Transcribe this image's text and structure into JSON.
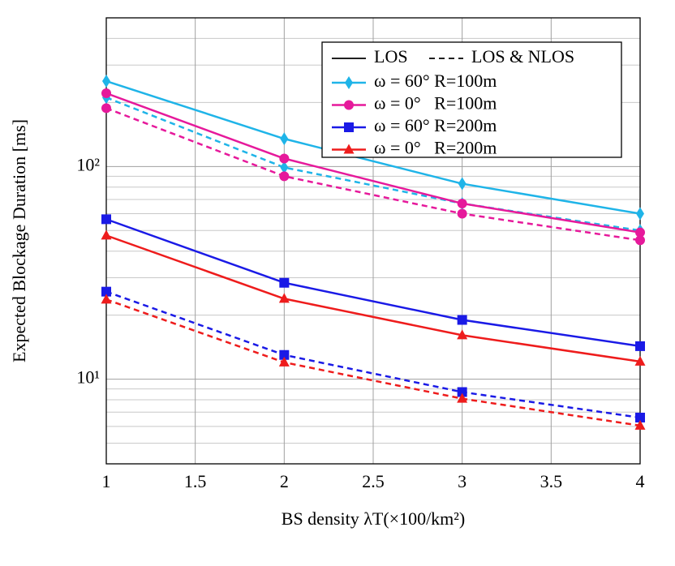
{
  "chart_data": {
    "type": "line",
    "x_label": "BS density λT(×100/km²)",
    "y_label": "Expected Blockage Duration [ms]",
    "x": [
      1,
      2,
      3,
      4
    ],
    "xlim": [
      1,
      4
    ],
    "xticks": [
      1,
      1.5,
      2,
      2.5,
      3,
      3.5,
      4
    ],
    "ylim": [
      4,
      500
    ],
    "y_log": true,
    "yticks": [
      {
        "value": 10,
        "label": "10¹"
      },
      {
        "value": 100,
        "label": "10²"
      }
    ],
    "y_minor_ticks": [
      4,
      5,
      6,
      7,
      8,
      9,
      20,
      30,
      40,
      50,
      60,
      70,
      80,
      90,
      200,
      300,
      400,
      500
    ],
    "grid": true,
    "legend": "upper right",
    "line_styles": [
      {
        "name": "LOS",
        "dashed": false
      },
      {
        "name": "LOS & NLOS",
        "dashed": true
      }
    ],
    "series": [
      {
        "name": "ω = 60° R=100m",
        "color": "#1fb4e8",
        "marker": "diamond",
        "values": [
          252,
          135,
          83,
          60
        ],
        "values_los_nlos": [
          211,
          99,
          67,
          50
        ]
      },
      {
        "name": "ω = 0°   R=100m",
        "color": "#e6199b",
        "marker": "circle",
        "values": [
          221,
          109,
          67,
          49
        ],
        "values_los_nlos": [
          188,
          90,
          60,
          45
        ]
      },
      {
        "name": "ω = 60° R=200m",
        "color": "#1a1ae6",
        "marker": "square",
        "values": [
          56.5,
          28.4,
          19,
          14.3
        ],
        "values_los_nlos": [
          25.8,
          13,
          8.7,
          6.6
        ]
      },
      {
        "name": "ω = 0°   R=200m",
        "color": "#ee1c1c",
        "marker": "triangle",
        "values": [
          47.4,
          23.9,
          16.1,
          12.1
        ],
        "values_los_nlos": [
          23.7,
          12,
          8.1,
          6.05
        ]
      }
    ]
  }
}
